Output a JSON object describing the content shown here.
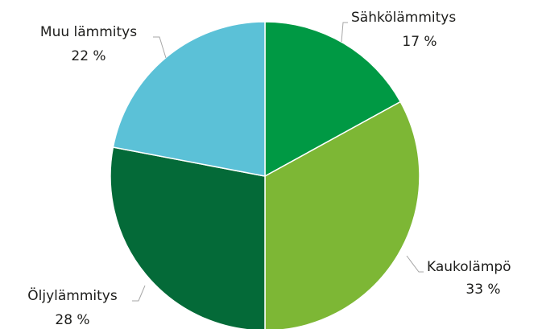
{
  "chart_data": {
    "type": "pie",
    "categories": [
      "Sähkölämmitys",
      "Kaukolämpö",
      "Öljylämmitys",
      "Muu lämmitys"
    ],
    "values": [
      17,
      33,
      28,
      22
    ],
    "value_labels": [
      "17 %",
      "33 %",
      "28 %",
      "22 %"
    ],
    "colors": [
      "#009944",
      "#7db735",
      "#046a38",
      "#5bc1d7"
    ]
  }
}
